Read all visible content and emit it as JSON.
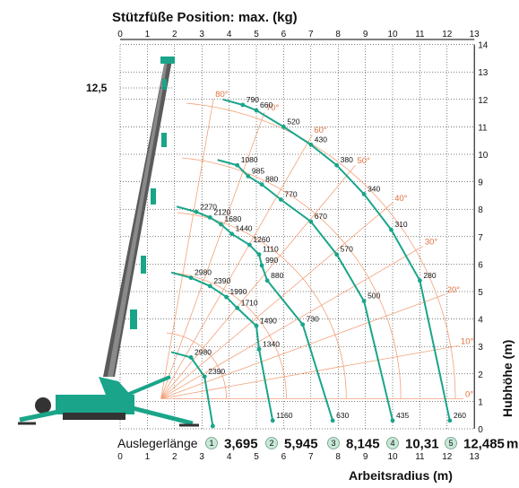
{
  "colors": {
    "curve": "#1aa58a",
    "grid_orange": "#f2a27a",
    "angle_text": "#e0703a",
    "boom": "#5a5a5a",
    "crane_body": "#1aa58a",
    "badge_fill": "#c8e8d8"
  },
  "chart_data": {
    "type": "line",
    "title": "Stützfüße Position: max. (kg)",
    "xlabel": "Arbeitsradius (m)",
    "ylabel": "Hubhöhe (m)",
    "xlim": [
      0,
      13
    ],
    "ylim": [
      0,
      14
    ],
    "x_ticks": [
      "0",
      "1",
      "2",
      "3",
      "4",
      "5",
      "6",
      "7",
      "8",
      "9",
      "10",
      "11",
      "12",
      "13"
    ],
    "y_ticks": [
      "0",
      "1",
      "2",
      "3",
      "4",
      "5",
      "6",
      "7",
      "8",
      "9",
      "10",
      "11",
      "12",
      "13",
      "14"
    ],
    "height_marker": "12,5",
    "angle_lines": [
      "0°",
      "10°",
      "20°",
      "30°",
      "40°",
      "50°",
      "60°",
      "70°",
      "80°"
    ],
    "boom_length_label": "Auslegerlänge",
    "boom_length_unit": "m",
    "boom_lengths": [
      {
        "index": "1",
        "value": "3,695"
      },
      {
        "index": "2",
        "value": "5,945"
      },
      {
        "index": "3",
        "value": "8,145"
      },
      {
        "index": "4",
        "value": "10,31"
      },
      {
        "index": "5",
        "value": "12,485"
      }
    ],
    "series": [
      {
        "index": "1",
        "points": [
          {
            "x": 2.6,
            "y": 2.6,
            "label": "2980"
          },
          {
            "x": 3.1,
            "y": 1.9,
            "label": "2390"
          },
          {
            "x": 3.4,
            "y": 0.1,
            "label": ""
          }
        ]
      },
      {
        "index": "2",
        "points": [
          {
            "x": 2.6,
            "y": 5.5,
            "label": "2980"
          },
          {
            "x": 3.3,
            "y": 5.2,
            "label": "2390"
          },
          {
            "x": 3.9,
            "y": 4.8,
            "label": "1990"
          },
          {
            "x": 4.3,
            "y": 4.4,
            "label": "1710"
          },
          {
            "x": 5.0,
            "y": 3.75,
            "label": "1490"
          },
          {
            "x": 5.1,
            "y": 2.9,
            "label": "1340"
          },
          {
            "x": 5.6,
            "y": 0.3,
            "label": "1160"
          }
        ]
      },
      {
        "index": "3",
        "points": [
          {
            "x": 2.8,
            "y": 7.9,
            "label": "2270"
          },
          {
            "x": 3.3,
            "y": 7.7,
            "label": "2120"
          },
          {
            "x": 3.7,
            "y": 7.45,
            "label": "1680"
          },
          {
            "x": 4.1,
            "y": 7.1,
            "label": "1440"
          },
          {
            "x": 4.75,
            "y": 6.7,
            "label": "1260"
          },
          {
            "x": 5.1,
            "y": 6.35,
            "label": "1110"
          },
          {
            "x": 5.2,
            "y": 5.95,
            "label": "990"
          },
          {
            "x": 5.4,
            "y": 5.4,
            "label": "880"
          },
          {
            "x": 6.7,
            "y": 3.8,
            "label": "730"
          },
          {
            "x": 7.8,
            "y": 0.3,
            "label": "630"
          }
        ]
      },
      {
        "index": "4",
        "points": [
          {
            "x": 4.3,
            "y": 9.6,
            "label": "1080"
          },
          {
            "x": 4.7,
            "y": 9.2,
            "label": "985"
          },
          {
            "x": 5.2,
            "y": 8.9,
            "label": "880"
          },
          {
            "x": 5.9,
            "y": 8.35,
            "label": "770"
          },
          {
            "x": 7.0,
            "y": 7.55,
            "label": "670"
          },
          {
            "x": 7.95,
            "y": 6.35,
            "label": "570"
          },
          {
            "x": 8.95,
            "y": 4.65,
            "label": "500"
          },
          {
            "x": 10.0,
            "y": 0.3,
            "label": "435"
          }
        ]
      },
      {
        "index": "5",
        "points": [
          {
            "x": 4.5,
            "y": 11.8,
            "label": "790"
          },
          {
            "x": 5.0,
            "y": 11.6,
            "label": "660"
          },
          {
            "x": 6.0,
            "y": 11.0,
            "label": "520"
          },
          {
            "x": 7.0,
            "y": 10.35,
            "label": "430"
          },
          {
            "x": 7.95,
            "y": 9.6,
            "label": "380"
          },
          {
            "x": 8.95,
            "y": 8.55,
            "label": "340"
          },
          {
            "x": 9.95,
            "y": 7.25,
            "label": "310"
          },
          {
            "x": 11.0,
            "y": 5.4,
            "label": "280"
          },
          {
            "x": 12.1,
            "y": 0.3,
            "label": "260"
          }
        ]
      }
    ]
  }
}
